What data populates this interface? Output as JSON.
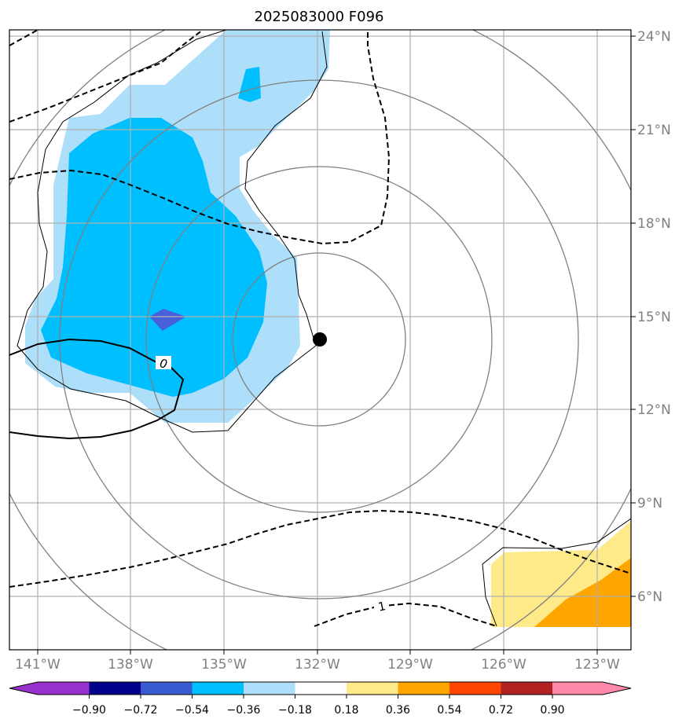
{
  "title": "2025083000 F096",
  "map": {
    "lon_range": [
      -142,
      -122
    ],
    "lat_range": [
      4.5,
      24.2
    ],
    "lon_ticks": [
      -141,
      -138,
      -135,
      -132,
      -129,
      -126,
      -123
    ],
    "lat_ticks": [
      24,
      21,
      18,
      15,
      12,
      9,
      6
    ],
    "lon_labels": [
      "141°W",
      "138°W",
      "135°W",
      "132°W",
      "129°W",
      "126°W",
      "123°W"
    ],
    "lat_labels": [
      "24°N",
      "21°N",
      "18°N",
      "15°N",
      "12°N",
      "9°N",
      "6°N"
    ],
    "storm_center": {
      "lon": -132.1,
      "lat": 14.2
    },
    "range_rings_deg": [
      2.7,
      5.5,
      8.3,
      11.1
    ],
    "contour_labels": [
      "0",
      "1"
    ]
  },
  "colorbar": {
    "levels": [
      "−0.90",
      "−0.72",
      "−0.54",
      "−0.36",
      "−0.18",
      "0.18",
      "0.36",
      "0.54",
      "0.72",
      "0.90"
    ],
    "colors": [
      "#9932CC",
      "#00008B",
      "#3A5BD0",
      "#00BFFF",
      "#ADDEFA",
      "#FFFFFF",
      "#FFEA8A",
      "#FFA500",
      "#FF4500",
      "#B22222",
      "#FF88AA"
    ]
  },
  "colors": {
    "frame": "#000000",
    "grid": "#b0b0b0",
    "rings": "#808080",
    "fill_light_blue": "#ADDEFA",
    "fill_blue": "#00BFFF",
    "fill_royal": "#4860D8",
    "fill_yellow": "#FFEA8A",
    "fill_orange": "#FFA500"
  }
}
